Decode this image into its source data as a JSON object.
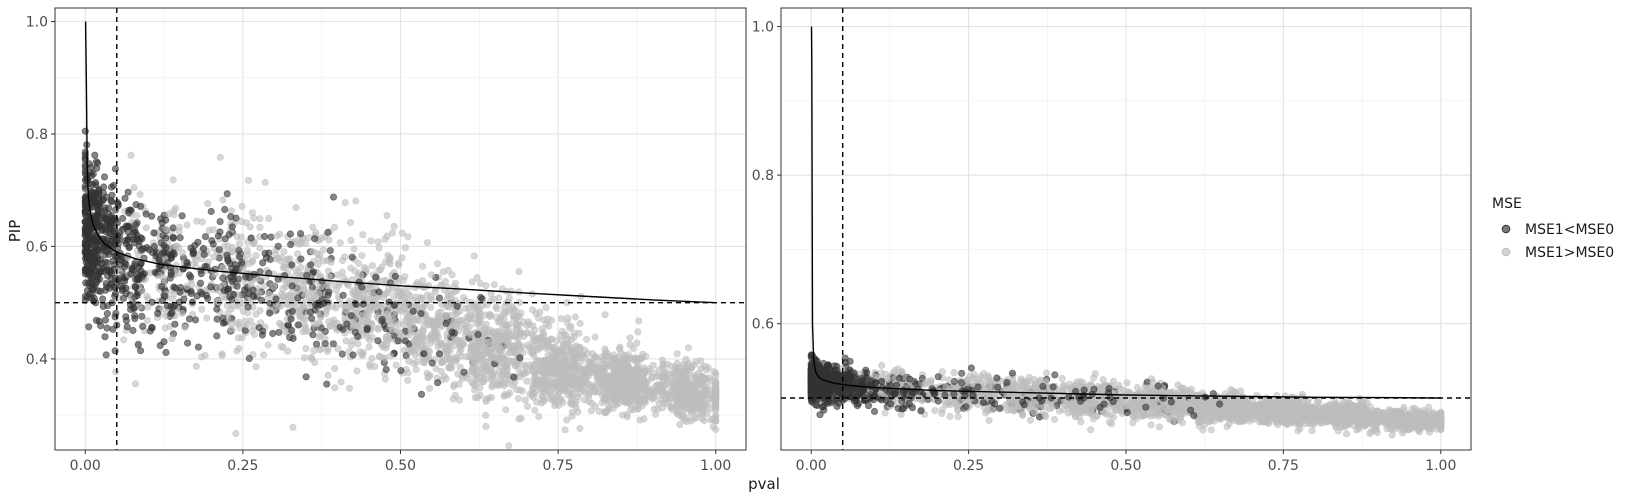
{
  "chart_data": {
    "type": "scatter",
    "shared": {
      "xlabel": "pval",
      "ylabel": "PIP",
      "x_ticks": [
        "0.00",
        "0.25",
        "0.50",
        "0.75",
        "1.00"
      ],
      "x_tick_values": [
        0,
        0.25,
        0.5,
        0.75,
        1.0
      ],
      "vline_x": 0.05,
      "hline_y": 0.5,
      "grid": true,
      "legend": {
        "title": "MSE",
        "placement": "right",
        "entries": [
          {
            "label": "MSE1<MSE0",
            "color": "#333333"
          },
          {
            "label": "MSE1>MSE0",
            "color": "#bdbdbd"
          }
        ]
      }
    },
    "panels": [
      {
        "xlim": [
          -0.048,
          1.048
        ],
        "ylim": [
          0.238,
          1.024
        ],
        "y_ticks": [
          "0.4",
          "0.6",
          "0.8",
          "1.0"
        ],
        "y_tick_values": [
          0.4,
          0.6,
          0.8,
          1.0
        ],
        "curve": {
          "x": [
            0.002,
            0.003,
            0.005,
            0.008,
            0.012,
            0.02,
            0.03,
            0.05,
            0.08,
            0.12,
            0.2,
            0.3,
            0.4,
            0.5,
            0.6,
            0.7,
            0.8,
            0.9,
            1.0
          ],
          "y": [
            0.87,
            0.74,
            0.69,
            0.66,
            0.64,
            0.62,
            0.605,
            0.59,
            0.578,
            0.568,
            0.557,
            0.547,
            0.538,
            0.53,
            0.524,
            0.517,
            0.511,
            0.505,
            0.5
          ]
        },
        "series": [
          {
            "name": "MSE1<MSE0",
            "color": "#333333",
            "centers": [
              [
                0.002,
                0.65
              ],
              [
                0.01,
                0.62
              ],
              [
                0.03,
                0.6
              ],
              [
                0.06,
                0.58
              ],
              [
                0.1,
                0.56
              ],
              [
                0.15,
                0.55
              ],
              [
                0.2,
                0.55
              ],
              [
                0.25,
                0.54
              ],
              [
                0.3,
                0.53
              ],
              [
                0.35,
                0.5
              ],
              [
                0.4,
                0.5
              ],
              [
                0.45,
                0.48
              ],
              [
                0.5,
                0.46
              ],
              [
                0.55,
                0.45
              ],
              [
                0.6,
                0.44
              ],
              [
                0.65,
                0.42
              ]
            ],
            "spread": [
              0.06,
              0.06,
              0.06,
              0.06,
              0.06,
              0.06,
              0.06,
              0.06,
              0.06,
              0.06,
              0.05,
              0.05,
              0.05,
              0.04,
              0.04,
              0.04
            ],
            "counts": [
              150,
              260,
              260,
              220,
              150,
              110,
              100,
              90,
              70,
              60,
              50,
              40,
              30,
              25,
              20,
              15
            ]
          },
          {
            "name": "MSE1>MSE0",
            "color": "#bdbdbd",
            "centers": [
              [
                0.1,
                0.57
              ],
              [
                0.2,
                0.55
              ],
              [
                0.3,
                0.53
              ],
              [
                0.4,
                0.51
              ],
              [
                0.5,
                0.48
              ],
              [
                0.6,
                0.44
              ],
              [
                0.7,
                0.4
              ],
              [
                0.8,
                0.37
              ],
              [
                0.9,
                0.35
              ],
              [
                0.98,
                0.335
              ]
            ],
            "spread": [
              0.07,
              0.07,
              0.06,
              0.06,
              0.05,
              0.045,
              0.04,
              0.03,
              0.025,
              0.02
            ],
            "counts": [
              150,
              250,
              350,
              450,
              550,
              650,
              750,
              800,
              700,
              400
            ]
          }
        ]
      },
      {
        "xlim": [
          -0.048,
          1.048
        ],
        "ylim": [
          0.43,
          1.025
        ],
        "y_ticks": [
          "0.6",
          "0.8",
          "1.0"
        ],
        "y_tick_values": [
          0.6,
          0.8,
          1.0
        ],
        "curve": {
          "x": [
            0.001,
            0.002,
            0.004,
            0.007,
            0.012,
            0.02,
            0.035,
            0.06,
            0.1,
            0.2,
            0.3,
            0.4,
            0.5,
            0.6,
            0.7,
            0.8,
            0.9,
            1.0
          ],
          "y": [
            0.95,
            0.6,
            0.55,
            0.535,
            0.528,
            0.524,
            0.52,
            0.517,
            0.514,
            0.51,
            0.508,
            0.506,
            0.504,
            0.503,
            0.502,
            0.501,
            0.5005,
            0.5
          ]
        },
        "series": [
          {
            "name": "MSE1<MSE0",
            "color": "#333333",
            "centers": [
              [
                0.003,
                0.525
              ],
              [
                0.015,
                0.52
              ],
              [
                0.04,
                0.52
              ],
              [
                0.07,
                0.515
              ],
              [
                0.12,
                0.51
              ],
              [
                0.2,
                0.508
              ],
              [
                0.3,
                0.505
              ],
              [
                0.4,
                0.5
              ],
              [
                0.5,
                0.498
              ],
              [
                0.6,
                0.49
              ]
            ],
            "spread": [
              0.012,
              0.012,
              0.012,
              0.012,
              0.011,
              0.011,
              0.011,
              0.01,
              0.01,
              0.01
            ],
            "counts": [
              250,
              350,
              300,
              200,
              150,
              100,
              80,
              60,
              40,
              25
            ]
          },
          {
            "name": "MSE1>MSE0",
            "color": "#bdbdbd",
            "centers": [
              [
                0.1,
                0.515
              ],
              [
                0.2,
                0.51
              ],
              [
                0.3,
                0.505
              ],
              [
                0.4,
                0.5
              ],
              [
                0.5,
                0.495
              ],
              [
                0.6,
                0.49
              ],
              [
                0.7,
                0.485
              ],
              [
                0.8,
                0.478
              ],
              [
                0.9,
                0.472
              ],
              [
                0.98,
                0.468
              ]
            ],
            "spread": [
              0.012,
              0.012,
              0.012,
              0.011,
              0.011,
              0.01,
              0.009,
              0.008,
              0.007,
              0.006
            ],
            "counts": [
              150,
              250,
              350,
              450,
              550,
              650,
              700,
              700,
              600,
              350
            ]
          }
        ]
      }
    ]
  }
}
